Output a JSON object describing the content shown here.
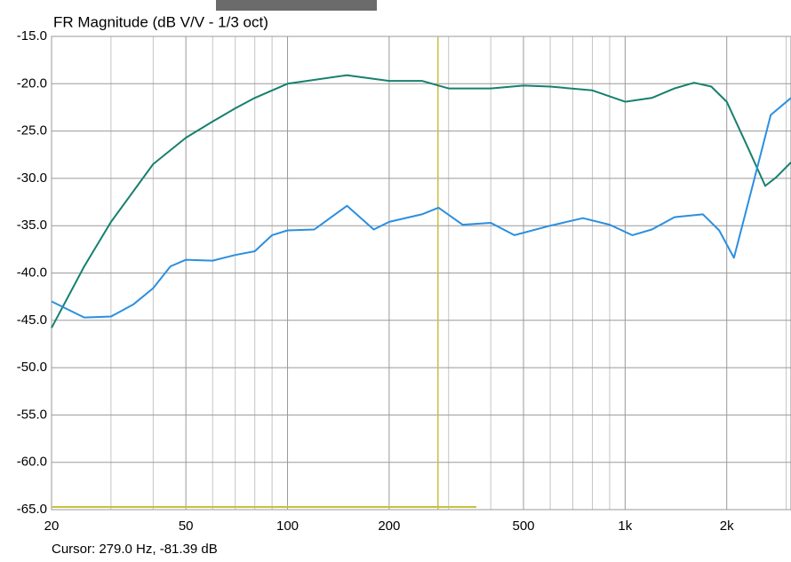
{
  "chart_data": {
    "type": "line",
    "title": "FR Magnitude (dB V/V - 1/3 oct)",
    "xscale": "log",
    "xlim": [
      20,
      3100
    ],
    "ylim": [
      -65,
      -15
    ],
    "xticks": [
      20,
      50,
      100,
      200,
      500,
      {
        "value": 1000,
        "label": "1k"
      },
      {
        "value": 2000,
        "label": "2k"
      }
    ],
    "xgrid_minor": [
      30,
      40,
      60,
      70,
      80,
      90,
      300,
      400,
      600,
      700,
      800,
      900,
      3000
    ],
    "yticks": [
      {
        "value": -15,
        "label": "-15.0"
      },
      {
        "value": -20,
        "label": "-20.0"
      },
      {
        "value": -25,
        "label": "-25.0"
      },
      {
        "value": -30,
        "label": "-30.0"
      },
      {
        "value": -35,
        "label": "-35.0"
      },
      {
        "value": -40,
        "label": "-40.0"
      },
      {
        "value": -45,
        "label": "-45.0"
      },
      {
        "value": -50,
        "label": "-50.0"
      },
      {
        "value": -55,
        "label": "-55.0"
      },
      {
        "value": -60,
        "label": "-60.0"
      },
      {
        "value": -65,
        "label": "-65.0"
      }
    ],
    "grid": true,
    "cursor": {
      "x": 279.0,
      "color": "#c8c040"
    },
    "cursor_text": "Cursor: 279.0 Hz, -81.39 dB",
    "series": [
      {
        "color": "#17806f",
        "x": [
          20,
          25,
          30,
          40,
          50,
          60,
          70,
          80,
          100,
          150,
          200,
          250,
          300,
          400,
          500,
          600,
          800,
          1000,
          1200,
          1400,
          1600,
          1800,
          2000,
          2300,
          2600,
          2800,
          3100
        ],
        "values": [
          -45.8,
          -39.3,
          -34.6,
          -28.5,
          -25.7,
          -24.0,
          -22.6,
          -21.5,
          -20.0,
          -19.1,
          -19.7,
          -19.7,
          -20.5,
          -20.5,
          -20.2,
          -20.3,
          -20.7,
          -21.9,
          -21.5,
          -20.5,
          -19.9,
          -20.3,
          -21.9,
          -26.6,
          -30.8,
          -29.9,
          -28.3
        ]
      },
      {
        "color": "#2b8fe0",
        "x": [
          20,
          25,
          30,
          35,
          40,
          45,
          50,
          60,
          70,
          80,
          90,
          100,
          120,
          150,
          180,
          200,
          250,
          280,
          330,
          400,
          470,
          600,
          750,
          900,
          1050,
          1200,
          1400,
          1700,
          1900,
          2100,
          2400,
          2700,
          3100
        ],
        "values": [
          -43.0,
          -44.7,
          -44.6,
          -43.3,
          -41.6,
          -39.3,
          -38.6,
          -38.7,
          -38.1,
          -37.7,
          -36.0,
          -35.5,
          -35.4,
          -32.9,
          -35.4,
          -34.6,
          -33.8,
          -33.1,
          -34.9,
          -34.7,
          -36.0,
          -35.0,
          -34.2,
          -34.9,
          -36.0,
          -35.4,
          -34.1,
          -33.8,
          -35.5,
          -38.4,
          -30.4,
          -23.3,
          -21.5
        ]
      }
    ]
  }
}
